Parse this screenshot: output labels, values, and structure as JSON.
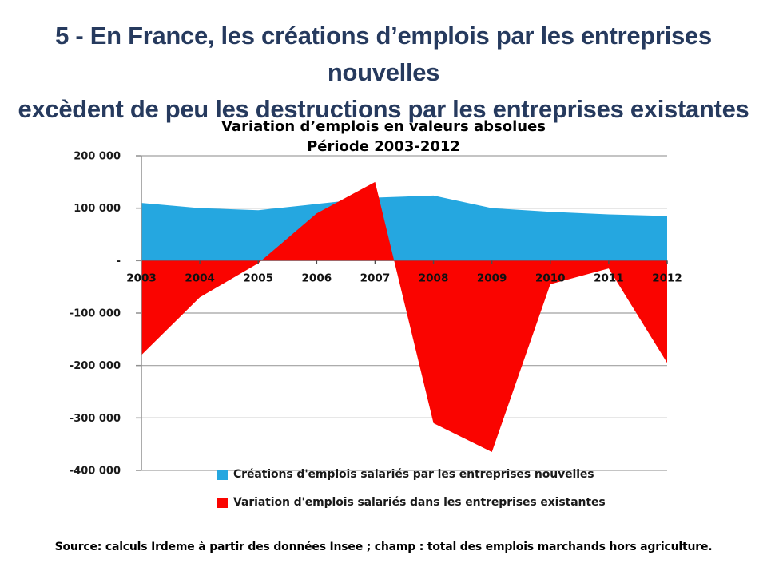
{
  "slide": {
    "title_line1": "5 - En France, les créations d’emplois par les entreprises nouvelles",
    "title_line2": "excèdent de peu les destructions par les entreprises existantes",
    "title_color": "#263A5E",
    "source": "Source: calculs Irdeme à partir des données Insee ; champ : total des emplois marchands hors agriculture."
  },
  "chart_data": {
    "type": "area",
    "title_line1": "Variation d’emplois en valeurs absolues",
    "title_line2": "Période 2003-2012",
    "categories": [
      "2003",
      "2004",
      "2005",
      "2006",
      "2007",
      "2008",
      "2009",
      "2010",
      "2011",
      "2012"
    ],
    "series": [
      {
        "name": "Créations d'emplois salariés par les entreprises nouvelles",
        "color": "#25A7E0",
        "values": [
          110000,
          100000,
          96000,
          108000,
          120000,
          124000,
          100000,
          93000,
          88000,
          85000
        ]
      },
      {
        "name": "Variation d'emplois salariés dans les entreprises existantes",
        "color": "#FA0400",
        "values": [
          -180000,
          -70000,
          -5000,
          90000,
          150000,
          -310000,
          -365000,
          -45000,
          -15000,
          -195000
        ]
      }
    ],
    "ylim": [
      -400000,
      200000
    ],
    "yticks": [
      {
        "value": 200000,
        "label": "200 000"
      },
      {
        "value": 100000,
        "label": "100 000"
      },
      {
        "value": 0,
        "label": "-"
      },
      {
        "value": -100000,
        "label": "-100 000"
      },
      {
        "value": -200000,
        "label": "-200 000"
      },
      {
        "value": -300000,
        "label": "-300 000"
      },
      {
        "value": -400000,
        "label": "-400 000"
      }
    ],
    "grid": true,
    "legend_position": "bottom-left"
  }
}
